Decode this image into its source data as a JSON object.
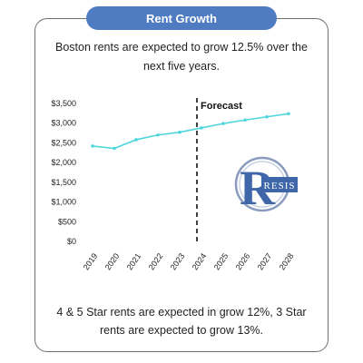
{
  "header": {
    "title": "Rent Growth"
  },
  "subtitle": "Boston rents are expected to grow 12.5% over the next five years.",
  "footnote": "4 & 5 Star rents are expected in grow 12%, 3 Star rents are expected  to grow 13%.",
  "logo": {
    "text": "RESIS",
    "icon": "resis-logo"
  },
  "colors": {
    "header": "#4f7bc2",
    "line": "#4fd6dc",
    "logo": "#3f66a8"
  },
  "chart_data": {
    "type": "line",
    "x": [
      "2019",
      "2020",
      "2021",
      "2022",
      "2023",
      "2024",
      "2025",
      "2026",
      "2027",
      "2028"
    ],
    "series": [
      {
        "values": [
          2420,
          2360,
          2580,
          2700,
          2770,
          2880,
          2990,
          3080,
          3160,
          3240
        ]
      }
    ],
    "yticks": [
      "$0",
      "$500",
      "$1,000",
      "$1,500",
      "$2,000",
      "$2,500",
      "$3,000",
      "$3,500"
    ],
    "ylim": [
      0,
      3500
    ],
    "annotation": {
      "label": "Forecast",
      "x": "2024",
      "style": "dashed-vertical-line"
    },
    "grid": false,
    "legend": "none"
  }
}
